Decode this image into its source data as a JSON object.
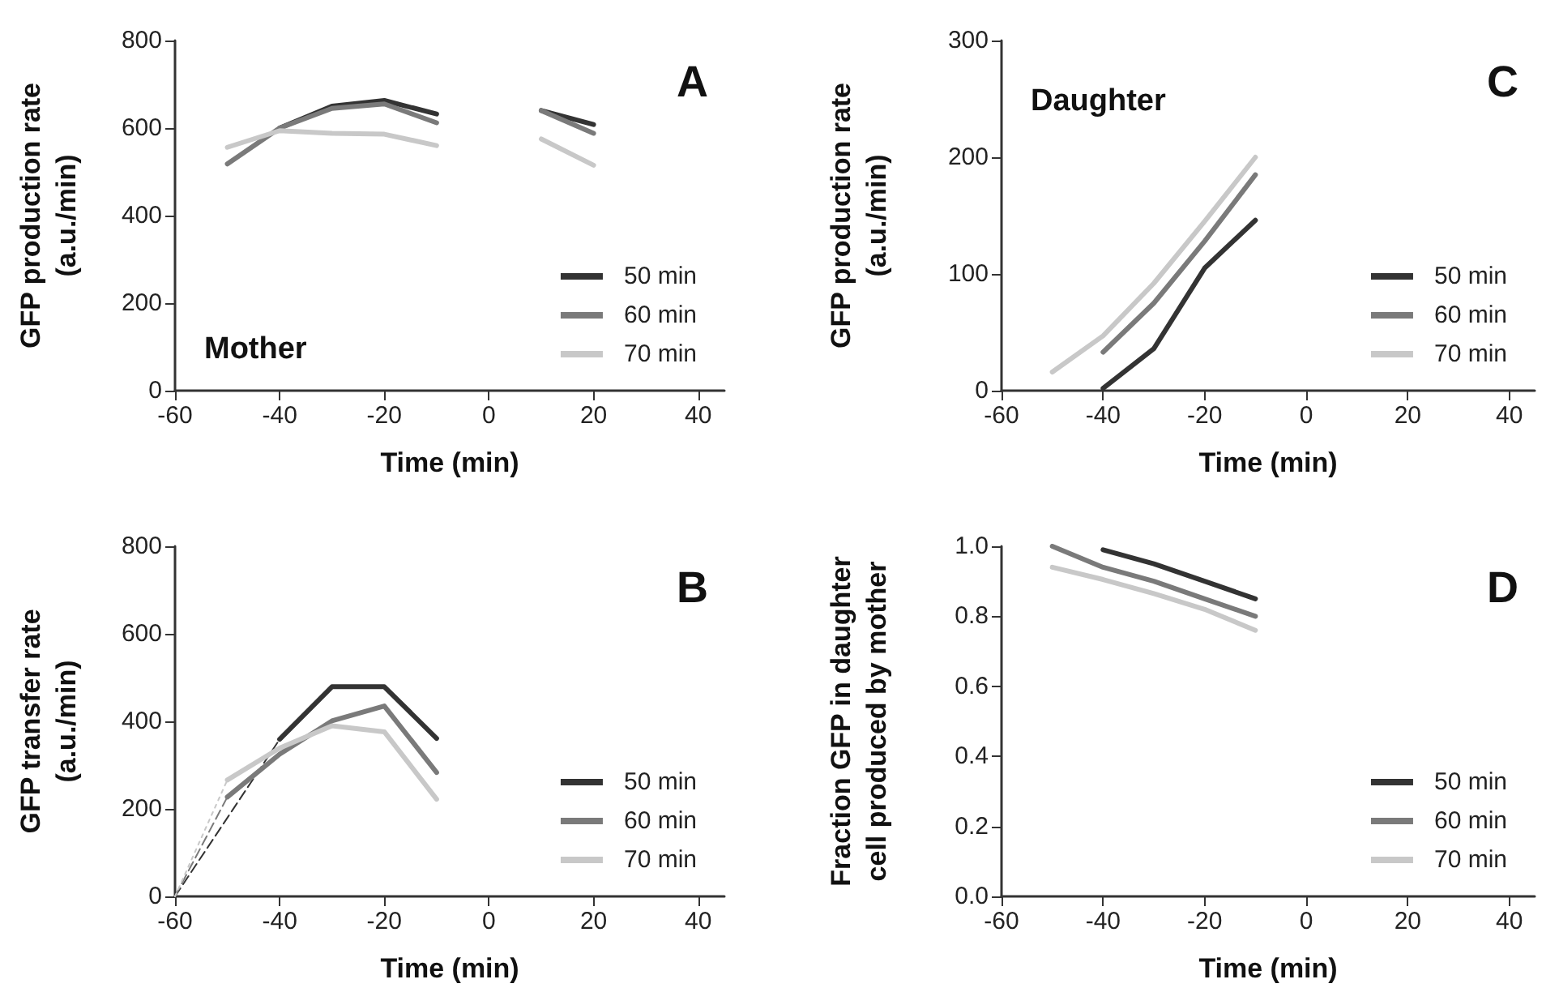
{
  "chart_data": [
    {
      "type": "line",
      "ylabel": "GFP production rate\n(a.u./min)",
      "xlabel": "Time (min)",
      "annotations": [
        "A",
        "Mother"
      ],
      "legend": "bottom right",
      "marker": "none",
      "line_style": "solid",
      "x": [
        -50,
        -40,
        -30,
        -20,
        -10,
        0,
        10,
        20
      ],
      "xlim": [
        -60,
        45
      ],
      "xticks": [
        -60,
        -40,
        -20,
        0,
        20,
        40
      ],
      "ylim": [
        0,
        800
      ],
      "yticks": [
        0,
        200,
        400,
        600,
        800
      ],
      "series": [
        {
          "name": "50 min",
          "color": "#333333",
          "values": [
            null,
            600,
            650,
            663,
            632,
            null,
            640,
            608
          ]
        },
        {
          "name": "60 min",
          "color": "#7a7a7a",
          "values": [
            518,
            600,
            645,
            655,
            612,
            null,
            640,
            588
          ]
        },
        {
          "name": "70 min",
          "color": "#c8c8c8",
          "values": [
            556,
            594,
            588,
            586,
            560,
            null,
            575,
            515
          ]
        }
      ]
    },
    {
      "type": "line",
      "ylabel": "GFP production rate\n(a.u./min)",
      "xlabel": "Time (min)",
      "annotations": [
        "C",
        "Daughter"
      ],
      "legend": "bottom right",
      "marker": "none",
      "line_style": "solid",
      "x": [
        -50,
        -40,
        -30,
        -20,
        -10
      ],
      "xlim": [
        -60,
        45
      ],
      "xticks": [
        -60,
        -40,
        -20,
        0,
        20,
        40
      ],
      "ylim": [
        0,
        300
      ],
      "yticks": [
        0,
        100,
        200,
        300
      ],
      "series": [
        {
          "name": "50 min",
          "color": "#333333",
          "values": [
            null,
            2,
            36,
            105,
            146
          ]
        },
        {
          "name": "60 min",
          "color": "#7a7a7a",
          "values": [
            null,
            33,
            75,
            128,
            185
          ]
        },
        {
          "name": "70 min",
          "color": "#c8c8c8",
          "values": [
            16,
            47,
            92,
            145,
            200
          ]
        }
      ]
    },
    {
      "type": "line",
      "ylabel": "GFP transfer rate\n(a.u./min)",
      "xlabel": "Time (min)",
      "annotations": [
        "B"
      ],
      "legend": "bottom right",
      "marker": "none",
      "line_style": "solid",
      "x": [
        -50,
        -40,
        -30,
        -20,
        -10
      ],
      "xlim": [
        -60,
        45
      ],
      "xticks": [
        -60,
        -40,
        -20,
        0,
        20,
        40
      ],
      "ylim": [
        0,
        800
      ],
      "yticks": [
        0,
        200,
        400,
        600,
        800
      ],
      "series": [
        {
          "name": "50 min",
          "color": "#333333",
          "values": [
            null,
            359,
            479,
            479,
            361
          ]
        },
        {
          "name": "60 min",
          "color": "#7a7a7a",
          "values": [
            227,
            325,
            401,
            435,
            283
          ]
        },
        {
          "name": "70 min",
          "color": "#c8c8c8",
          "values": [
            266,
            339,
            390,
            376,
            222
          ]
        },
        {
          "color": "#333333",
          "line_style": "dashed",
          "x": [
            -60,
            -40
          ],
          "values": [
            0,
            359
          ]
        },
        {
          "color": "#7a7a7a",
          "line_style": "dashed",
          "x": [
            -60,
            -50
          ],
          "values": [
            0,
            227
          ]
        },
        {
          "color": "#c8c8c8",
          "line_style": "dotted",
          "x": [
            -60,
            -50
          ],
          "values": [
            0,
            266
          ]
        }
      ]
    },
    {
      "type": "line",
      "ylabel": "Fraction GFP in daughter\ncell produced by mother",
      "xlabel": "Time (min)",
      "annotations": [
        "D"
      ],
      "legend": "bottom right",
      "marker": "none",
      "line_style": "solid",
      "x": [
        -50,
        -40,
        -30,
        -20,
        -10
      ],
      "xlim": [
        -60,
        45
      ],
      "xticks": [
        -60,
        -40,
        -20,
        0,
        20,
        40
      ],
      "ylim": [
        0,
        1
      ],
      "yticks": [
        {
          "value": 0,
          "label": "0.0"
        },
        {
          "value": 0.2,
          "label": "0.2"
        },
        {
          "value": 0.4,
          "label": "0.4"
        },
        {
          "value": 0.6,
          "label": "0.6"
        },
        {
          "value": 0.8,
          "label": "0.8"
        },
        {
          "value": 1,
          "label": "1.0"
        }
      ],
      "series": [
        {
          "name": "50 min",
          "color": "#333333",
          "values": [
            null,
            0.99,
            0.95,
            0.9,
            0.85
          ]
        },
        {
          "name": "60 min",
          "color": "#7a7a7a",
          "values": [
            1,
            0.94,
            0.9,
            0.85,
            0.8
          ]
        },
        {
          "name": "70 min",
          "color": "#c8c8c8",
          "values": [
            0.94,
            0.905,
            0.865,
            0.82,
            0.76
          ]
        }
      ]
    }
  ]
}
